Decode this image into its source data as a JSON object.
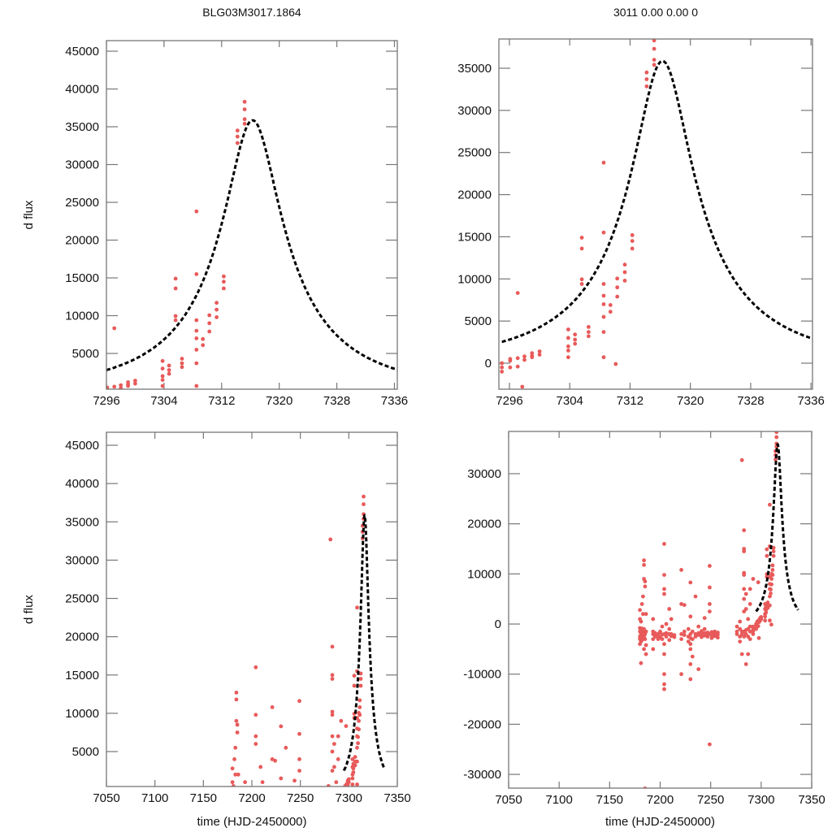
{
  "chart_data": {
    "type": "scatter",
    "titles": {
      "left": "BLG03M3017.1864",
      "right": "3011   0.00   0.00   0"
    },
    "ylabel": "d flux",
    "xlabel": "time (HJD-2450000)",
    "colors": {
      "points": "#e85a5a",
      "model": "#000000",
      "frame": "#777777"
    },
    "model": {
      "type": "paczynski",
      "t0": 7316.3,
      "u0": 0.2,
      "tE": 20,
      "flux_scale": 8800,
      "baseline": 0,
      "t_start": 7295,
      "t_end": 7336.5
    },
    "panels": [
      {
        "id": "top-left",
        "xlim": [
          7296,
          7336.4
        ],
        "ylim": [
          270,
          46400
        ],
        "xticks": [
          7296,
          7304,
          7312,
          7320,
          7328,
          7336
        ],
        "yticks": [
          5000,
          10000,
          15000,
          20000,
          25000,
          30000,
          35000,
          40000,
          45000
        ],
        "title_key": "left",
        "show_ylabel": true,
        "show_xlabel": false
      },
      {
        "id": "top-right",
        "xlim": [
          7294.6,
          7336.2
        ],
        "ylim": [
          -3085,
          38470
        ],
        "xticks": [
          7296,
          7304,
          7312,
          7320,
          7328,
          7336
        ],
        "yticks": [
          0,
          5000,
          10000,
          15000,
          20000,
          25000,
          30000,
          35000
        ],
        "title_key": "right",
        "show_ylabel": false,
        "show_xlabel": false
      },
      {
        "id": "bottom-left",
        "xlim": [
          7050,
          7350
        ],
        "ylim": [
          440,
          46700
        ],
        "xticks": [
          7050,
          7100,
          7150,
          7200,
          7250,
          7300,
          7350
        ],
        "yticks": [
          5000,
          10000,
          15000,
          20000,
          25000,
          30000,
          35000,
          40000,
          45000
        ],
        "title_key": null,
        "show_ylabel": true,
        "show_xlabel": true
      },
      {
        "id": "bottom-right",
        "xlim": [
          7050,
          7350
        ],
        "ylim": [
          -32740,
          38430
        ],
        "xticks": [
          7050,
          7100,
          7150,
          7200,
          7250,
          7300,
          7350
        ],
        "yticks": [
          -30000,
          -20000,
          -10000,
          0,
          10000,
          20000,
          30000
        ],
        "title_key": null,
        "show_ylabel": false,
        "show_xlabel": true
      }
    ],
    "points": [
      [
        7180,
        -1500
      ],
      [
        7180,
        -3000
      ],
      [
        7180,
        1000
      ],
      [
        7180,
        -2500
      ],
      [
        7180,
        2800
      ],
      [
        7180,
        -800
      ],
      [
        7180,
        -4000
      ],
      [
        7181,
        -2000
      ],
      [
        7181,
        -3500
      ],
      [
        7181,
        -1200
      ],
      [
        7181,
        500
      ],
      [
        7181,
        -7800
      ],
      [
        7182,
        -1800
      ],
      [
        7182,
        -2600
      ],
      [
        7182,
        -900
      ],
      [
        7182,
        4000
      ],
      [
        7182,
        -3200
      ],
      [
        7183,
        -2200
      ],
      [
        7183,
        -1500
      ],
      [
        7183,
        -3000
      ],
      [
        7183,
        2000
      ],
      [
        7183,
        5500
      ],
      [
        7184,
        12700
      ],
      [
        7184,
        11800
      ],
      [
        7184,
        -2500
      ],
      [
        7184,
        -1000
      ],
      [
        7184,
        -5000
      ],
      [
        7184,
        9000
      ],
      [
        7185,
        -2000
      ],
      [
        7185,
        -3000
      ],
      [
        7185,
        8500
      ],
      [
        7185,
        7500
      ],
      [
        7185,
        -32800
      ],
      [
        7186,
        -1500
      ],
      [
        7186,
        -4200
      ],
      [
        7186,
        2000
      ],
      [
        7186,
        -6000
      ],
      [
        7193,
        -2000
      ],
      [
        7193,
        -3000
      ],
      [
        7193,
        1000
      ],
      [
        7193,
        -1500
      ],
      [
        7193,
        -5000
      ],
      [
        7195,
        -2500
      ],
      [
        7195,
        -1800
      ],
      [
        7195,
        -2200
      ],
      [
        7198,
        -2000
      ],
      [
        7198,
        -3000
      ],
      [
        7198,
        -2400
      ],
      [
        7200,
        -2600
      ],
      [
        7200,
        -1700
      ],
      [
        7200,
        -1500
      ],
      [
        7202,
        -2100
      ],
      [
        7202,
        -3000
      ],
      [
        7202,
        -500
      ],
      [
        7204,
        16000
      ],
      [
        7204,
        9800
      ],
      [
        7204,
        7000
      ],
      [
        7204,
        6000
      ],
      [
        7204,
        -2000
      ],
      [
        7204,
        -4000
      ],
      [
        7204,
        -13000
      ],
      [
        7204,
        -12000
      ],
      [
        7204,
        -10000
      ],
      [
        7204,
        -6000
      ],
      [
        7206,
        -2500
      ],
      [
        7206,
        -1800
      ],
      [
        7206,
        0
      ],
      [
        7209,
        -2000
      ],
      [
        7209,
        -3200
      ],
      [
        7209,
        -1000
      ],
      [
        7209,
        3000
      ],
      [
        7211,
        -2400
      ],
      [
        7211,
        -2000
      ],
      [
        7211,
        1000
      ],
      [
        7214,
        -2200
      ],
      [
        7214,
        -2600
      ],
      [
        7221,
        10800
      ],
      [
        7221,
        4000
      ],
      [
        7221,
        -10000
      ],
      [
        7221,
        -2000
      ],
      [
        7221,
        -3000
      ],
      [
        7224,
        3800
      ],
      [
        7224,
        -2200
      ],
      [
        7224,
        -1500
      ],
      [
        7228,
        -2500
      ],
      [
        7228,
        -1000
      ],
      [
        7228,
        -3500
      ],
      [
        7230,
        8300
      ],
      [
        7230,
        1500
      ],
      [
        7230,
        -2000
      ],
      [
        7230,
        -5000
      ],
      [
        7230,
        -8000
      ],
      [
        7230,
        -11000
      ],
      [
        7230,
        -2800
      ],
      [
        7230,
        -4000
      ],
      [
        7232,
        -1500
      ],
      [
        7232,
        -3000
      ],
      [
        7232,
        -6500
      ],
      [
        7235,
        5500
      ],
      [
        7235,
        -2000
      ],
      [
        7235,
        -2500
      ],
      [
        7238,
        -9000
      ],
      [
        7238,
        -2200
      ],
      [
        7238,
        -1800
      ],
      [
        7238,
        -500
      ],
      [
        7241,
        -2000
      ],
      [
        7241,
        -2600
      ],
      [
        7241,
        -1400
      ],
      [
        7244,
        -2300
      ],
      [
        7244,
        -1800
      ],
      [
        7244,
        -1000
      ],
      [
        7244,
        1200
      ],
      [
        7247,
        -2500
      ],
      [
        7247,
        -1700
      ],
      [
        7247,
        -2100
      ],
      [
        7249,
        11600
      ],
      [
        7249,
        7300
      ],
      [
        7249,
        4000
      ],
      [
        7249,
        2500
      ],
      [
        7249,
        -2000
      ],
      [
        7249,
        -24000
      ],
      [
        7251,
        -2200
      ],
      [
        7251,
        -1600
      ],
      [
        7251,
        -2800
      ],
      [
        7254,
        -2400
      ],
      [
        7254,
        -1900
      ],
      [
        7254,
        -1500
      ],
      [
        7257,
        -2100
      ],
      [
        7257,
        -2700
      ],
      [
        7257,
        -1700
      ],
      [
        7276,
        -1500
      ],
      [
        7276,
        -2000
      ],
      [
        7276,
        -500
      ],
      [
        7279,
        -1000
      ],
      [
        7279,
        -2500
      ],
      [
        7279,
        -3500
      ],
      [
        7279,
        500
      ],
      [
        7281,
        32700
      ],
      [
        7281,
        -1500
      ],
      [
        7281,
        -2000
      ],
      [
        7281,
        -6000
      ],
      [
        7283,
        18700
      ],
      [
        7283,
        15000
      ],
      [
        7283,
        14500
      ],
      [
        7283,
        10200
      ],
      [
        7283,
        9800
      ],
      [
        7283,
        7000
      ],
      [
        7283,
        5000
      ],
      [
        7283,
        2500
      ],
      [
        7283,
        -1500
      ],
      [
        7283,
        -2500
      ],
      [
        7285,
        -1200
      ],
      [
        7285,
        -2000
      ],
      [
        7285,
        3000
      ],
      [
        7285,
        6000
      ],
      [
        7285,
        -8000
      ],
      [
        7287,
        -1000
      ],
      [
        7287,
        -2500
      ],
      [
        7287,
        1000
      ],
      [
        7287,
        -6000
      ],
      [
        7289,
        -1500
      ],
      [
        7289,
        -500
      ],
      [
        7289,
        7000
      ],
      [
        7289,
        4000
      ],
      [
        7289,
        -3000
      ],
      [
        7292,
        9000
      ],
      [
        7292,
        -500
      ],
      [
        7292,
        -1000
      ],
      [
        7292,
        -1500
      ],
      [
        7292,
        -2000
      ],
      [
        7295,
        -1000
      ],
      [
        7295,
        0
      ],
      [
        7295,
        -500
      ],
      [
        7296.1,
        300
      ],
      [
        7296.1,
        500
      ],
      [
        7296.1,
        -500
      ],
      [
        7297.1,
        8330
      ],
      [
        7297.1,
        600
      ],
      [
        7297.1,
        -400
      ],
      [
        7297.7,
        -2800
      ],
      [
        7298,
        800
      ],
      [
        7298,
        400
      ],
      [
        7299,
        1200
      ],
      [
        7299,
        700
      ],
      [
        7299,
        900
      ],
      [
        7300,
        1000
      ],
      [
        7300,
        1400
      ],
      [
        7303.8,
        4000
      ],
      [
        7303.8,
        3000
      ],
      [
        7303.8,
        2000
      ],
      [
        7303.8,
        1500
      ],
      [
        7303.8,
        700
      ],
      [
        7304.7,
        3400
      ],
      [
        7304.7,
        2800
      ],
      [
        7304.7,
        2300
      ],
      [
        7305.6,
        14900
      ],
      [
        7305.6,
        13600
      ],
      [
        7305.6,
        9950
      ],
      [
        7305.6,
        9400
      ],
      [
        7306.5,
        4300
      ],
      [
        7306.5,
        3700
      ],
      [
        7306.5,
        3200
      ],
      [
        7308.5,
        23800
      ],
      [
        7308.5,
        15500
      ],
      [
        7308.5,
        9400
      ],
      [
        7308.5,
        8000
      ],
      [
        7308.5,
        7000
      ],
      [
        7308.5,
        5500
      ],
      [
        7308.5,
        3700
      ],
      [
        7308.5,
        700
      ],
      [
        7309.4,
        6900
      ],
      [
        7309.4,
        6100
      ],
      [
        7310.1,
        -100
      ],
      [
        7310.3,
        10050
      ],
      [
        7310.3,
        9000
      ],
      [
        7310.3,
        7900
      ],
      [
        7311.3,
        11700
      ],
      [
        7311.3,
        10800
      ],
      [
        7311.3,
        9800
      ],
      [
        7312.3,
        15200
      ],
      [
        7312.3,
        14500
      ],
      [
        7312.3,
        13600
      ],
      [
        7314.2,
        34500
      ],
      [
        7314.2,
        33700
      ],
      [
        7314.2,
        32850
      ],
      [
        7315.2,
        38300
      ],
      [
        7315.2,
        37300
      ],
      [
        7315.2,
        36000
      ],
      [
        7315.2,
        35400
      ]
    ]
  }
}
